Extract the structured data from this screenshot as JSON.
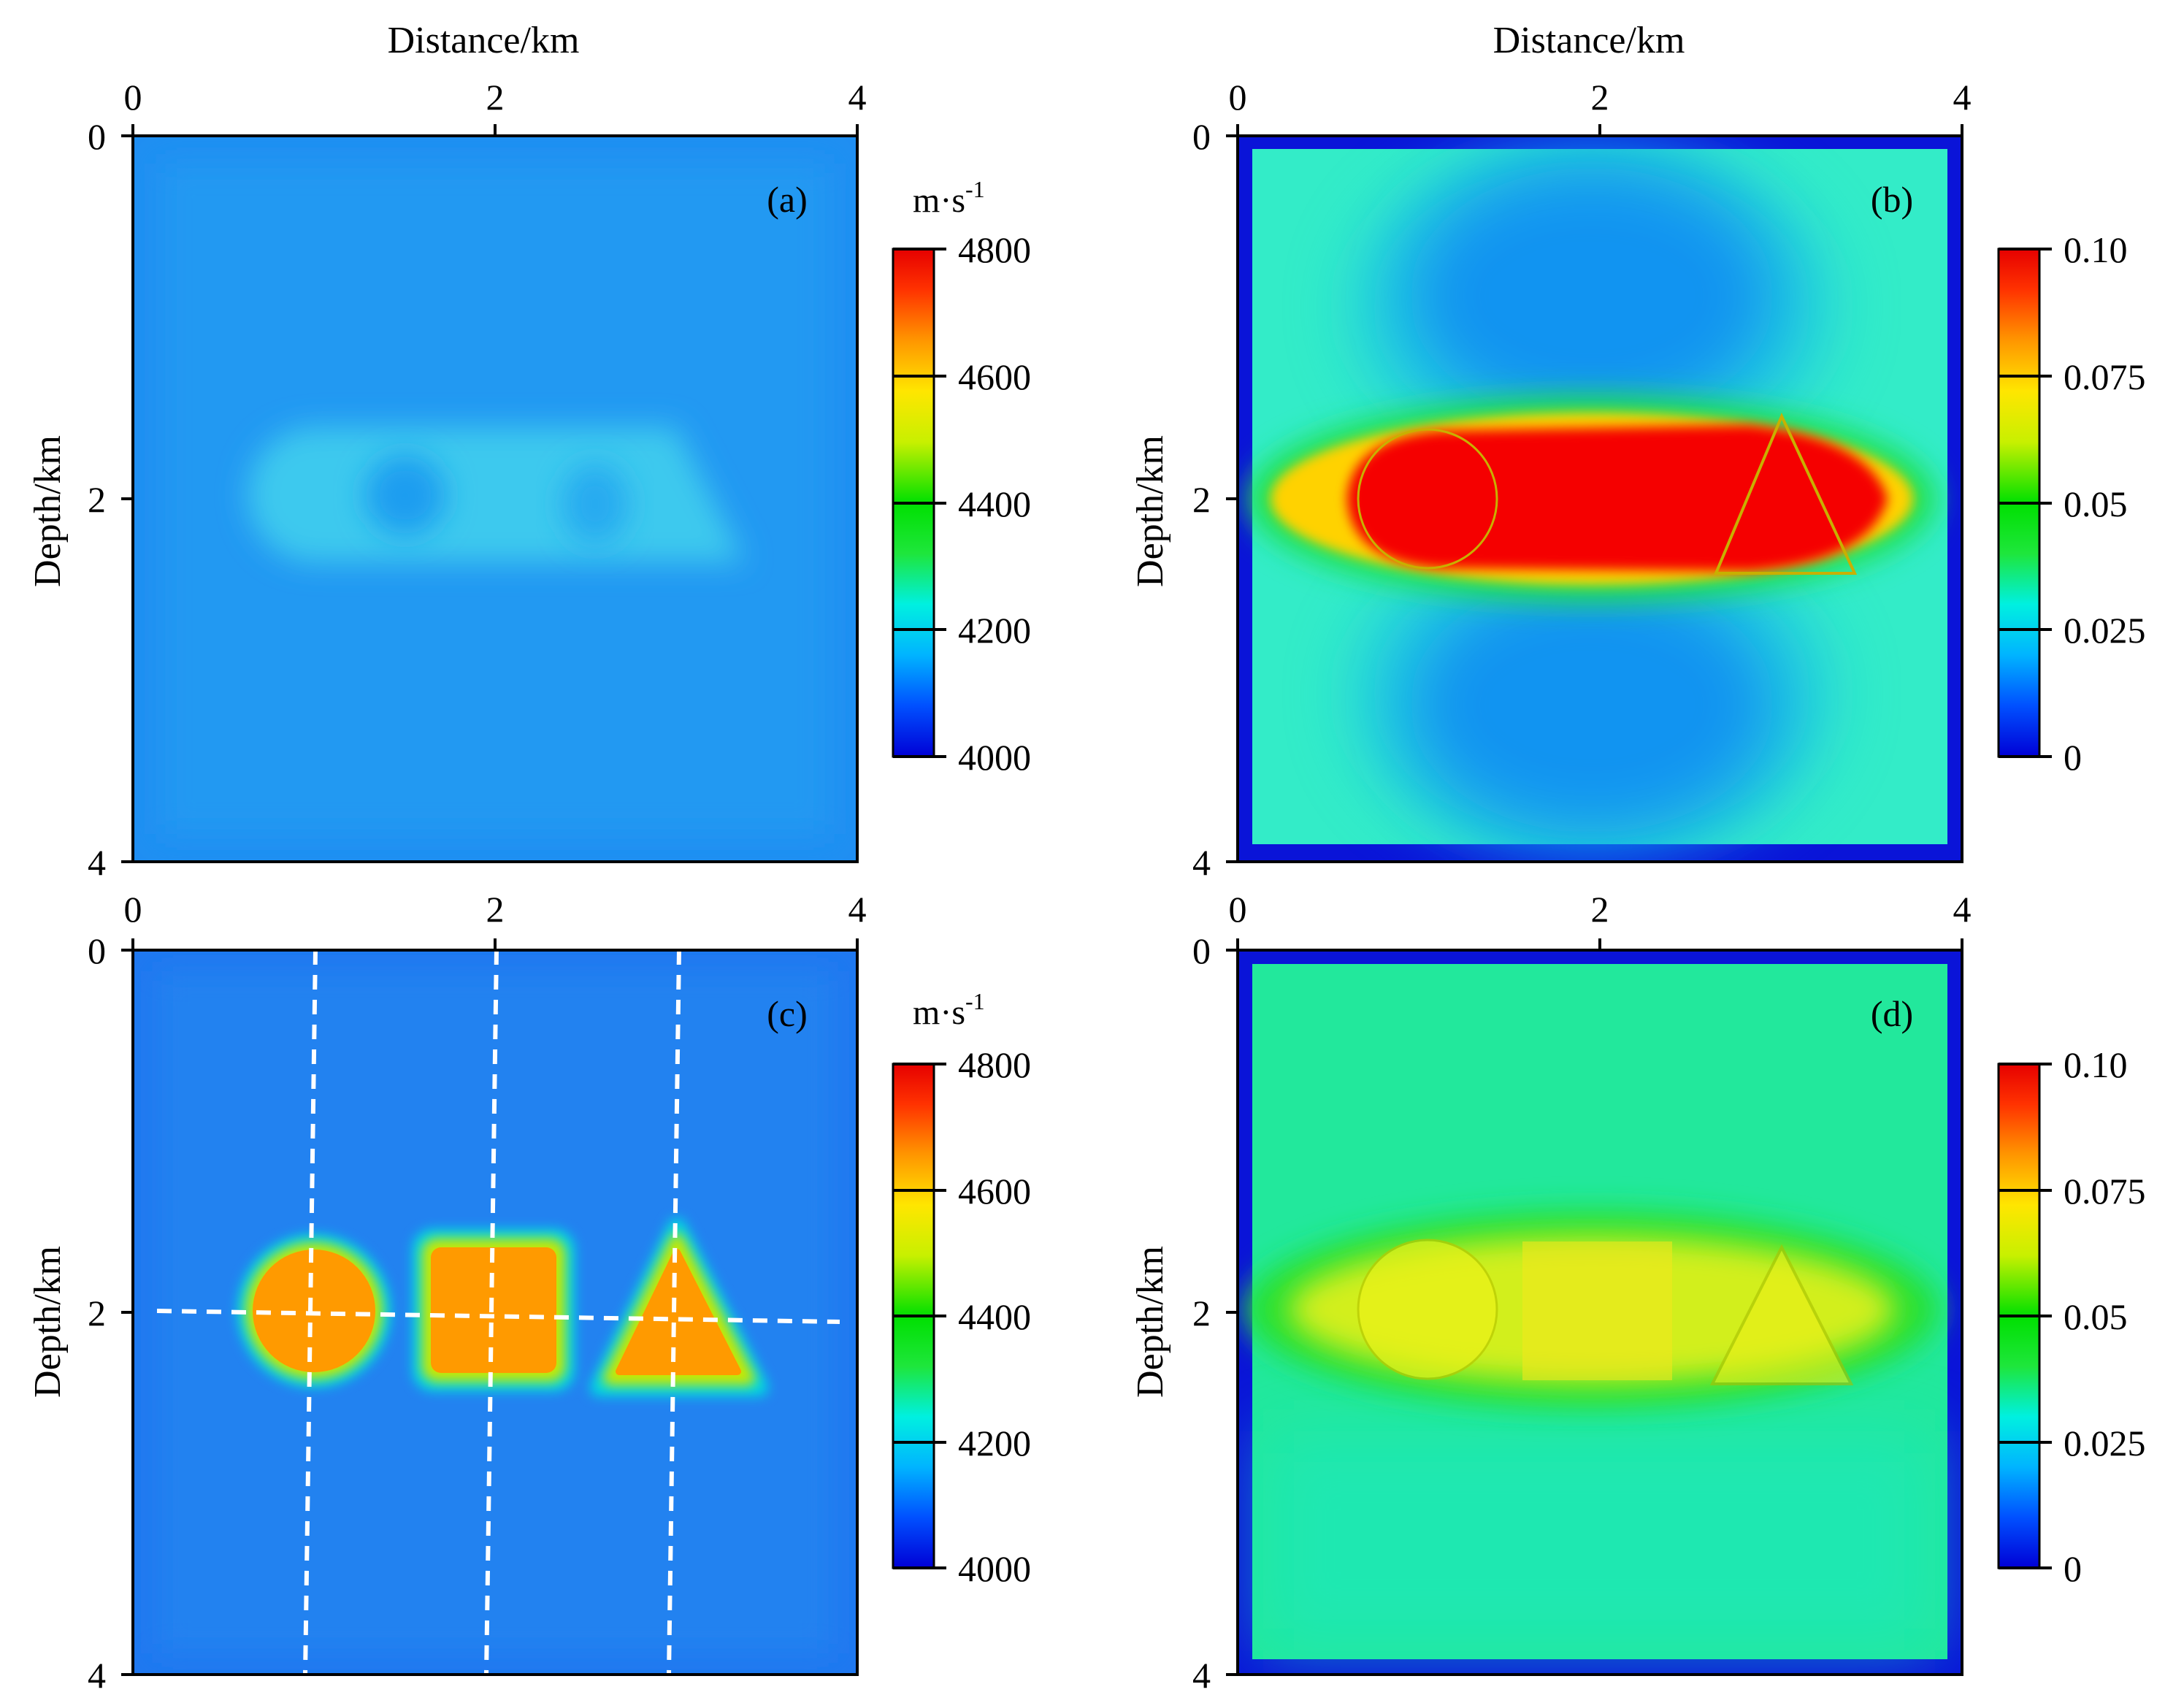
{
  "figure": {
    "x_axis_title": "Distance/km",
    "y_axis_title": "Depth/km"
  },
  "colors": {
    "jet": [
      "#0000d6",
      "#0050ff",
      "#00b4ff",
      "#00f0e0",
      "#1ee63c",
      "#00e000",
      "#c8f000",
      "#ffe600",
      "#ff9600",
      "#ff3200",
      "#e60000"
    ],
    "guide_line": "#ffffff",
    "axis": "#000000"
  },
  "chart_data": [
    {
      "type": "heatmap",
      "panel_label": "(a)",
      "x_ticks": [
        "0",
        "2",
        "4"
      ],
      "y_ticks": [
        "0",
        "2",
        "4"
      ],
      "xlim": [
        0,
        4
      ],
      "ylim": [
        0,
        4
      ],
      "colorbar": {
        "unit": "m·s",
        "unit_sup": "-1",
        "min": 4000,
        "max": 4800,
        "ticks": [
          "4800",
          "4600",
          "4400",
          "4200",
          "4000"
        ]
      },
      "background_value": 4150,
      "anomalies": [
        {
          "shape": "rounded-band",
          "x_range": [
            0.6,
            3.4
          ],
          "depth_range": [
            1.6,
            2.4
          ],
          "value": 4200
        }
      ]
    },
    {
      "type": "heatmap",
      "panel_label": "(b)",
      "x_ticks": [
        "0",
        "2",
        "4"
      ],
      "y_ticks": [
        "0",
        "2",
        "4"
      ],
      "xlim": [
        0,
        4
      ],
      "ylim": [
        0,
        4
      ],
      "colorbar": {
        "min": 0,
        "max": 0.1,
        "ticks": [
          "0.10",
          "0.075",
          "0.05",
          "0.025",
          "0"
        ]
      },
      "background_value": 0.03,
      "anomalies": [
        {
          "shape": "ellipse",
          "center": [
            2.0,
            2.0
          ],
          "axes": [
            1.65,
            0.4
          ],
          "value": 0.1
        },
        {
          "shape": "ellipse",
          "center": [
            2.0,
            1.0
          ],
          "axes": [
            1.1,
            0.55
          ],
          "value": 0.012
        },
        {
          "shape": "ellipse",
          "center": [
            2.0,
            3.0
          ],
          "axes": [
            1.1,
            0.55
          ],
          "value": 0.012
        }
      ]
    },
    {
      "type": "heatmap",
      "panel_label": "(c)",
      "x_ticks": [
        "0",
        "2",
        "4"
      ],
      "y_ticks": [
        "0",
        "2",
        "4"
      ],
      "xlim": [
        0,
        4
      ],
      "ylim": [
        0,
        4
      ],
      "colorbar": {
        "unit": "m·s",
        "unit_sup": "-1",
        "min": 4000,
        "max": 4800,
        "ticks": [
          "4800",
          "4600",
          "4400",
          "4200",
          "4000"
        ]
      },
      "background_value": 4100,
      "anomalies": [
        {
          "shape": "circle",
          "center": [
            1.0,
            2.0
          ],
          "radius": 0.35,
          "value": 4700
        },
        {
          "shape": "square",
          "center": [
            2.0,
            2.0
          ],
          "half_size": 0.4,
          "value": 4700
        },
        {
          "shape": "triangle",
          "apex": [
            3.0,
            1.6
          ],
          "base_y": 2.35,
          "base_half_width": 0.4,
          "value": 4700
        }
      ],
      "guide_lines": {
        "vertical_x": [
          1.0,
          2.0,
          3.0
        ],
        "horizontal_depth": 2.0
      }
    },
    {
      "type": "heatmap",
      "panel_label": "(d)",
      "x_ticks": [
        "0",
        "2",
        "4"
      ],
      "y_ticks": [
        "0",
        "2",
        "4"
      ],
      "xlim": [
        0,
        4
      ],
      "ylim": [
        0,
        4
      ],
      "colorbar": {
        "min": 0,
        "max": 0.1,
        "ticks": [
          "0.10",
          "0.075",
          "0.05",
          "0.025",
          "0"
        ]
      },
      "background_value": 0.045,
      "anomalies": [
        {
          "shape": "ellipse",
          "center": [
            2.0,
            2.0
          ],
          "axes": [
            1.65,
            0.4
          ],
          "value": 0.07
        }
      ]
    }
  ]
}
